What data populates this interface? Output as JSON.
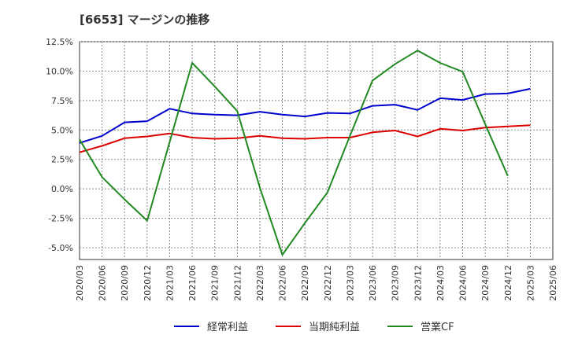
{
  "title": "[6653]  マージンの推移",
  "chart_data": {
    "type": "line",
    "x": [
      "2020/03",
      "2020/06",
      "2020/09",
      "2020/12",
      "2021/03",
      "2021/06",
      "2021/09",
      "2021/12",
      "2022/03",
      "2022/06",
      "2022/09",
      "2022/12",
      "2023/03",
      "2023/06",
      "2023/09",
      "2023/12",
      "2024/03",
      "2024/06",
      "2024/09",
      "2024/12",
      "2025/03",
      "2025/06"
    ],
    "ylim": [
      -6.0,
      12.5
    ],
    "yticks": [
      12.5,
      10.0,
      7.5,
      5.0,
      2.5,
      0.0,
      -2.5,
      -5.0
    ],
    "ytick_labels": [
      "12.5%",
      "10.0%",
      "7.5%",
      "5.0%",
      "2.5%",
      "0.0%",
      "-2.5%",
      "-5.0%"
    ],
    "grid": true,
    "legend_position": "bottom",
    "series": [
      {
        "name": "経常利益",
        "color": "#0000cc",
        "values": [
          3.9,
          4.5,
          5.65,
          5.75,
          6.8,
          6.4,
          6.3,
          6.25,
          6.55,
          6.3,
          6.15,
          6.45,
          6.4,
          7.05,
          7.15,
          6.7,
          7.7,
          7.55,
          8.05,
          8.1,
          8.5,
          null
        ]
      },
      {
        "name": "当期純利益",
        "color": "#dd0000",
        "values": [
          3.1,
          3.65,
          4.3,
          4.45,
          4.7,
          4.35,
          4.25,
          4.3,
          4.5,
          4.3,
          4.25,
          4.35,
          4.35,
          4.8,
          4.95,
          4.45,
          5.1,
          4.95,
          5.2,
          5.3,
          5.4,
          null
        ]
      },
      {
        "name": "営業CF",
        "color": "#228822",
        "values": [
          4.2,
          1.0,
          -0.9,
          -2.7,
          4.0,
          10.7,
          8.7,
          6.6,
          0.1,
          -5.6,
          -2.9,
          -0.3,
          4.5,
          9.2,
          10.6,
          11.75,
          10.7,
          9.95,
          5.5,
          1.1,
          null,
          null
        ]
      }
    ]
  }
}
